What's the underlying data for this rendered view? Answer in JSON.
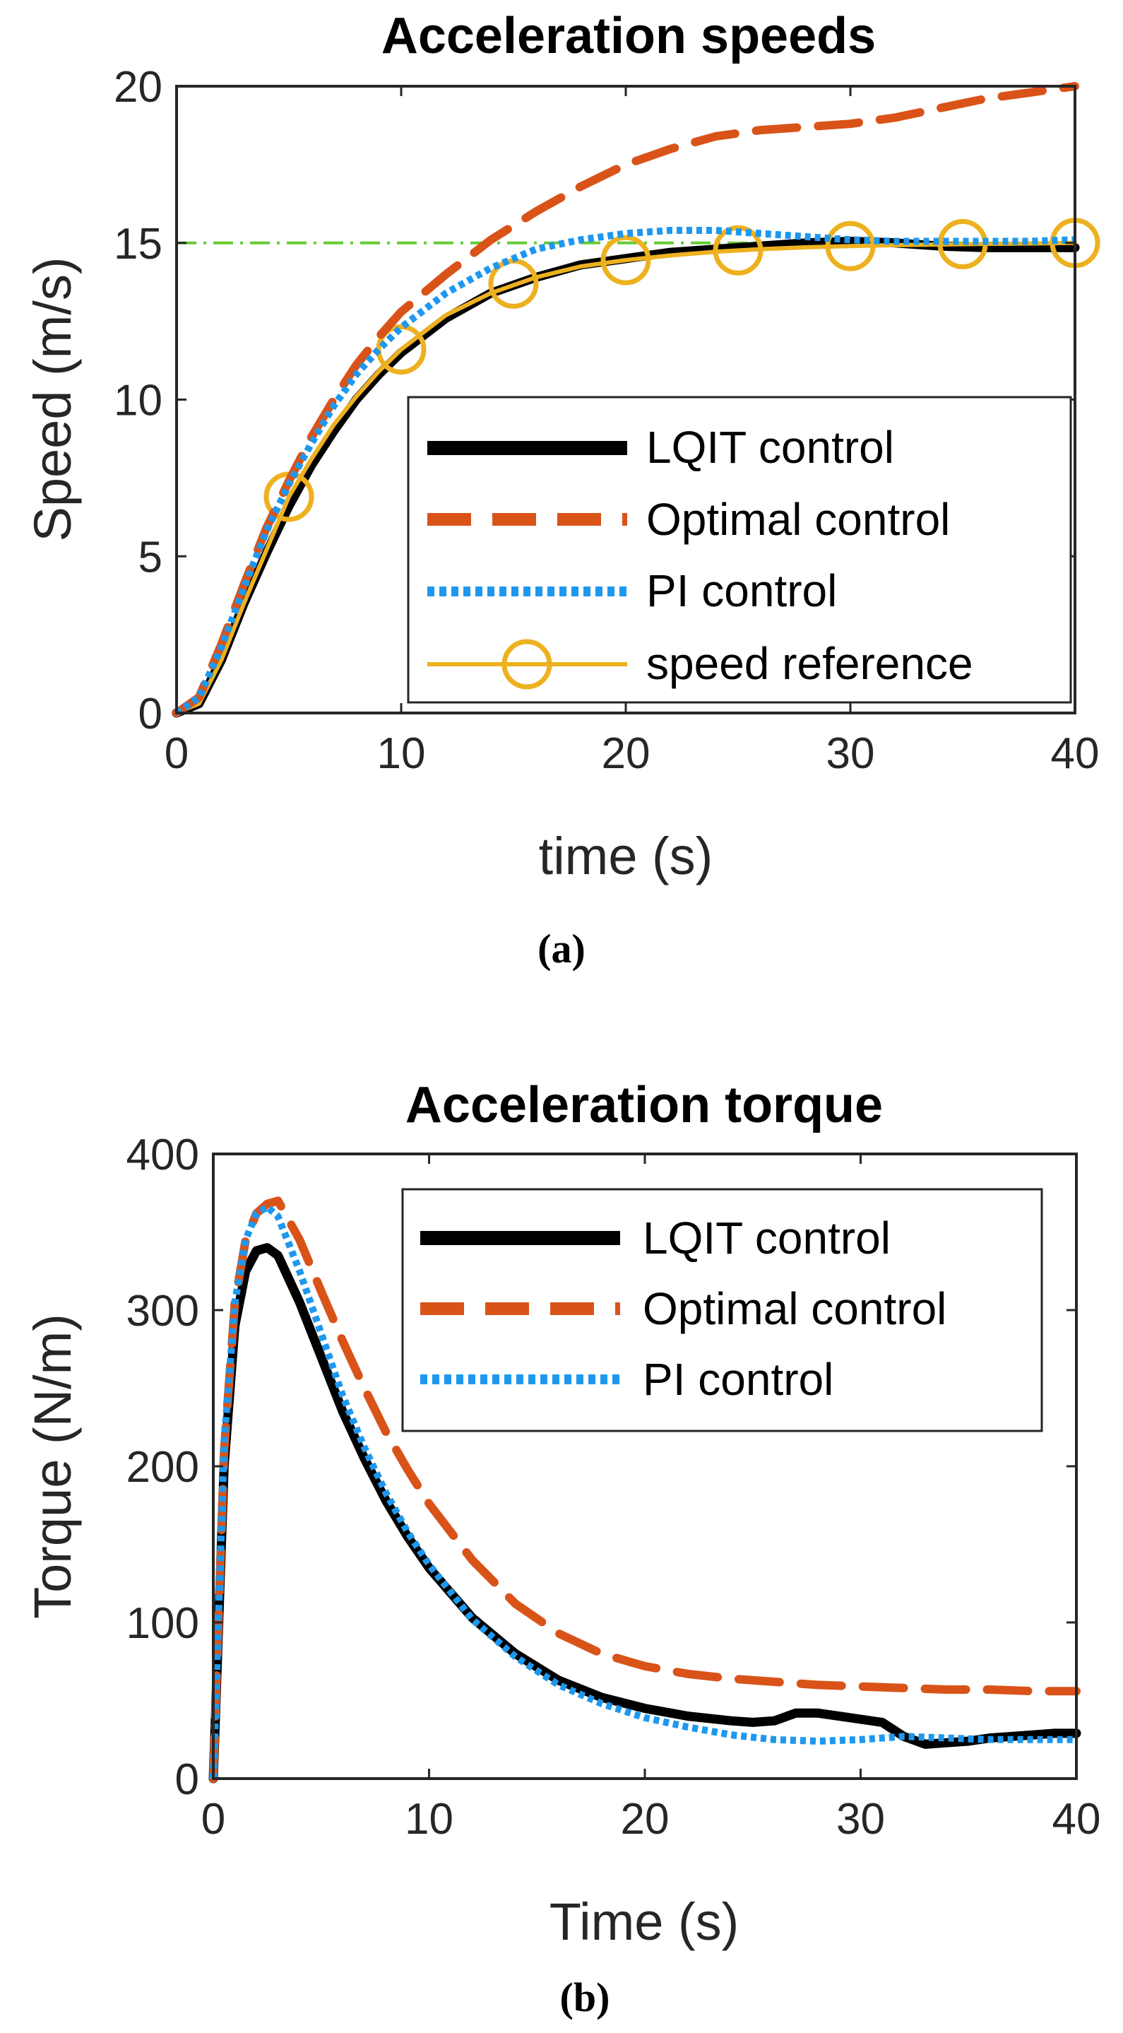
{
  "colors": {
    "lqit": "#000000",
    "optimal": "#D95319",
    "pi": "#1E98EE",
    "reference": "#EDB120",
    "target_line": "#66CC33"
  },
  "chart_data": [
    {
      "type": "line",
      "title": "Acceleration speeds",
      "xlabel": "time (s)",
      "ylabel": "Speed (m/s)",
      "xlim": [
        0,
        40
      ],
      "ylim": [
        0,
        20
      ],
      "xticks": [
        0,
        10,
        20,
        30,
        40
      ],
      "yticks": [
        0,
        5,
        10,
        15,
        20
      ],
      "x_tick_labels": [
        "0",
        "10",
        "20",
        "30",
        "40"
      ],
      "y_tick_labels": [
        "0",
        "5",
        "10",
        "15",
        "20"
      ],
      "caption": "(a)",
      "legend_position": "bottom-right",
      "target_line": {
        "y": 15,
        "style": "dash-dot"
      },
      "series": [
        {
          "name": "LQIT control",
          "style": "solid-thick",
          "x": [
            0,
            1,
            2,
            3,
            4,
            5,
            6,
            7,
            8,
            9,
            10,
            12,
            14,
            16,
            18,
            20,
            22,
            24,
            26,
            28,
            30,
            32,
            34,
            36,
            38,
            40
          ],
          "y": [
            0,
            0.3,
            1.7,
            3.5,
            5.1,
            6.6,
            7.9,
            9.0,
            10.0,
            10.8,
            11.5,
            12.6,
            13.4,
            13.9,
            14.3,
            14.5,
            14.7,
            14.8,
            14.9,
            15.0,
            15.05,
            15.0,
            14.9,
            14.85,
            14.85,
            14.85
          ]
        },
        {
          "name": "Optimal control",
          "style": "dashed",
          "x": [
            0,
            1,
            2,
            3,
            4,
            5,
            6,
            7,
            8,
            9,
            10,
            12,
            14,
            16,
            18,
            20,
            22,
            24,
            26,
            28,
            30,
            32,
            34,
            36,
            38,
            40
          ],
          "y": [
            0,
            0.5,
            2.2,
            4.1,
            5.9,
            7.4,
            8.8,
            10.0,
            11.1,
            12.0,
            12.8,
            14.0,
            15.1,
            16.0,
            16.8,
            17.5,
            18.0,
            18.4,
            18.6,
            18.7,
            18.8,
            19.0,
            19.3,
            19.6,
            19.8,
            20.0
          ]
        },
        {
          "name": "PI control",
          "style": "dotted",
          "x": [
            0,
            1,
            2,
            3,
            4,
            5,
            6,
            7,
            8,
            9,
            10,
            12,
            14,
            16,
            18,
            20,
            22,
            24,
            26,
            28,
            30,
            32,
            34,
            36,
            38,
            40
          ],
          "y": [
            0,
            0.5,
            2.1,
            4.0,
            5.8,
            7.3,
            8.6,
            9.8,
            10.8,
            11.6,
            12.3,
            13.4,
            14.2,
            14.8,
            15.1,
            15.3,
            15.4,
            15.4,
            15.3,
            15.2,
            15.1,
            15.05,
            15.05,
            15.05,
            15.05,
            15.1
          ]
        },
        {
          "name": "speed reference",
          "style": "solid-circles",
          "x": [
            0,
            1,
            2,
            3,
            4,
            5,
            6,
            7,
            8,
            9,
            10,
            12,
            14,
            16,
            18,
            20,
            22,
            24,
            26,
            28,
            30,
            32,
            34,
            36,
            38,
            40
          ],
          "y": [
            0,
            0.3,
            1.7,
            3.5,
            5.2,
            6.9,
            8.1,
            9.2,
            10.1,
            10.9,
            11.6,
            12.7,
            13.4,
            13.9,
            14.25,
            14.45,
            14.6,
            14.72,
            14.8,
            14.86,
            14.9,
            14.93,
            14.95,
            14.97,
            14.98,
            15.0
          ],
          "marker_x": [
            5,
            10,
            15,
            20,
            25,
            30,
            35,
            40
          ],
          "marker_y": [
            6.9,
            11.6,
            13.7,
            14.45,
            14.76,
            14.9,
            14.96,
            15.0
          ]
        }
      ]
    },
    {
      "type": "line",
      "title": "Acceleration torque",
      "xlabel": "Time (s)",
      "ylabel": "Torque (N/m)",
      "xlim": [
        0,
        40
      ],
      "ylim": [
        0,
        400
      ],
      "xticks": [
        0,
        10,
        20,
        30,
        40
      ],
      "yticks": [
        0,
        100,
        200,
        300,
        400
      ],
      "x_tick_labels": [
        "0",
        "10",
        "20",
        "30",
        "40"
      ],
      "y_tick_labels": [
        "0",
        "100",
        "200",
        "300",
        "400"
      ],
      "caption": "(b)",
      "legend_position": "top-right",
      "series": [
        {
          "name": "LQIT control",
          "style": "solid-thick",
          "x": [
            0,
            0.5,
            1,
            1.5,
            2,
            2.5,
            3,
            4,
            5,
            6,
            7,
            8,
            9,
            10,
            12,
            14,
            16,
            18,
            20,
            22,
            24,
            25,
            26,
            27,
            28,
            29,
            30,
            31,
            32,
            33,
            34,
            35,
            36,
            37,
            38,
            39,
            40
          ],
          "y": [
            0,
            200,
            290,
            325,
            338,
            340,
            335,
            305,
            270,
            235,
            205,
            178,
            155,
            135,
            103,
            80,
            63,
            52,
            45,
            40,
            37,
            36,
            37,
            42,
            42,
            40,
            38,
            36,
            27,
            22,
            23,
            24,
            26,
            27,
            28,
            29,
            29
          ]
        },
        {
          "name": "Optimal control",
          "style": "dashed",
          "x": [
            0,
            0.5,
            1,
            1.5,
            2,
            2.5,
            3,
            4,
            5,
            6,
            7,
            8,
            9,
            10,
            12,
            14,
            16,
            18,
            20,
            22,
            24,
            26,
            28,
            30,
            32,
            34,
            36,
            38,
            40
          ],
          "y": [
            0,
            210,
            305,
            345,
            362,
            368,
            370,
            345,
            312,
            280,
            250,
            222,
            198,
            176,
            140,
            112,
            93,
            80,
            72,
            67,
            64,
            62,
            60,
            59,
            58,
            57,
            57,
            56,
            56
          ]
        },
        {
          "name": "PI control",
          "style": "dotted",
          "x": [
            0,
            0.5,
            1,
            1.5,
            2,
            2.5,
            3,
            4,
            5,
            6,
            7,
            8,
            9,
            10,
            12,
            14,
            16,
            18,
            20,
            22,
            24,
            26,
            28,
            30,
            32,
            34,
            36,
            38,
            40
          ],
          "y": [
            0,
            215,
            305,
            345,
            362,
            366,
            360,
            325,
            285,
            245,
            212,
            183,
            158,
            137,
            102,
            78,
            60,
            48,
            39,
            33,
            28,
            25,
            24,
            25,
            27,
            26,
            25,
            25,
            25
          ]
        }
      ]
    }
  ]
}
